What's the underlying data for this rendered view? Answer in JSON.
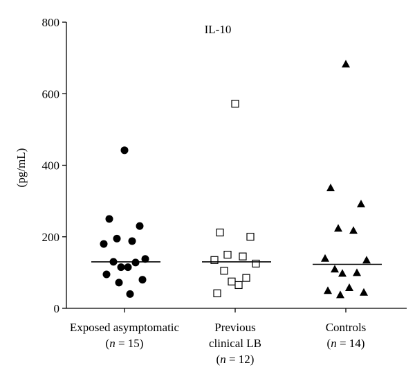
{
  "chart_data": {
    "type": "scatter",
    "title": "IL-10",
    "xlabel": "",
    "ylabel": "(pg/mL)",
    "ylim": [
      0,
      800
    ],
    "yticks": [
      0,
      200,
      400,
      600,
      800
    ],
    "grid": false,
    "categories": [
      {
        "label_line1": "Exposed asymptomatic",
        "label_line2": "n = 15",
        "label_line3": ""
      },
      {
        "label_line1": "Previous",
        "label_line2": "clinical LB",
        "label_line3": "n = 12"
      },
      {
        "label_line1": "Controls",
        "label_line2": "n = 14",
        "label_line3": ""
      }
    ],
    "series": [
      {
        "marker": "filled-circle",
        "median": 130,
        "values": [
          442,
          250,
          230,
          195,
          188,
          180,
          138,
          130,
          128,
          115,
          115,
          95,
          80,
          72,
          40
        ]
      },
      {
        "marker": "open-square",
        "median": 130,
        "values": [
          572,
          212,
          200,
          150,
          145,
          135,
          125,
          105,
          85,
          75,
          65,
          42
        ]
      },
      {
        "marker": "filled-triangle",
        "median": 123,
        "values": [
          683,
          337,
          292,
          224,
          218,
          140,
          135,
          110,
          100,
          98,
          58,
          50,
          45,
          38
        ]
      }
    ]
  }
}
